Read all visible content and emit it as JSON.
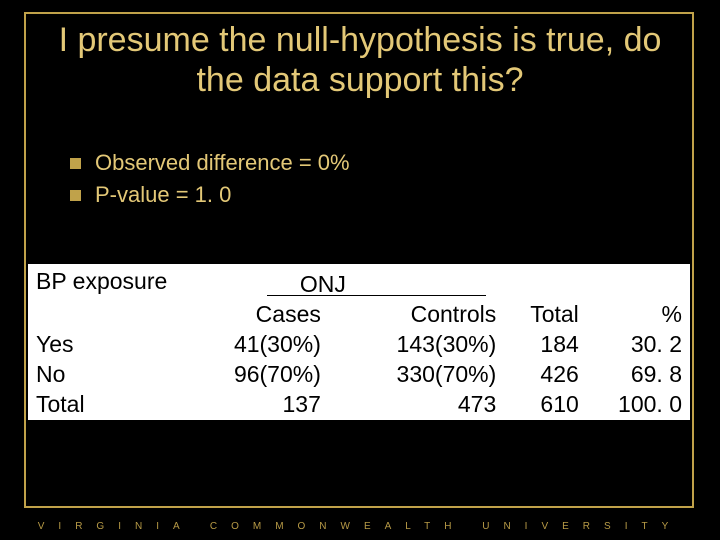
{
  "colors": {
    "background": "#000000",
    "border": "#c0a24a",
    "text_gold": "#e3c877",
    "table_bg": "#ffffff",
    "table_text": "#000000",
    "footer": "#b79a46"
  },
  "title": "I presume the null-hypothesis is true, do the data support this?",
  "bullets": [
    "Observed difference = 0%",
    "P-value = 1. 0"
  ],
  "table": {
    "bp_label": "BP exposure",
    "onj_label": "ONJ",
    "headers": {
      "cases": "Cases",
      "controls": "Controls",
      "total": "Total",
      "pct": "%"
    },
    "rows": [
      {
        "label": "Yes",
        "cases": "41(30%)",
        "controls": "143(30%)",
        "total": "184",
        "pct": "30. 2"
      },
      {
        "label": "No",
        "cases": "96(70%)",
        "controls": "330(70%)",
        "total": "426",
        "pct": "69. 8"
      },
      {
        "label": "Total",
        "cases": "137",
        "controls": "473",
        "total": "610",
        "pct": "100. 0"
      }
    ]
  },
  "footer": "VIRGINIA COMMONWEALTH UNIVERSITY"
}
